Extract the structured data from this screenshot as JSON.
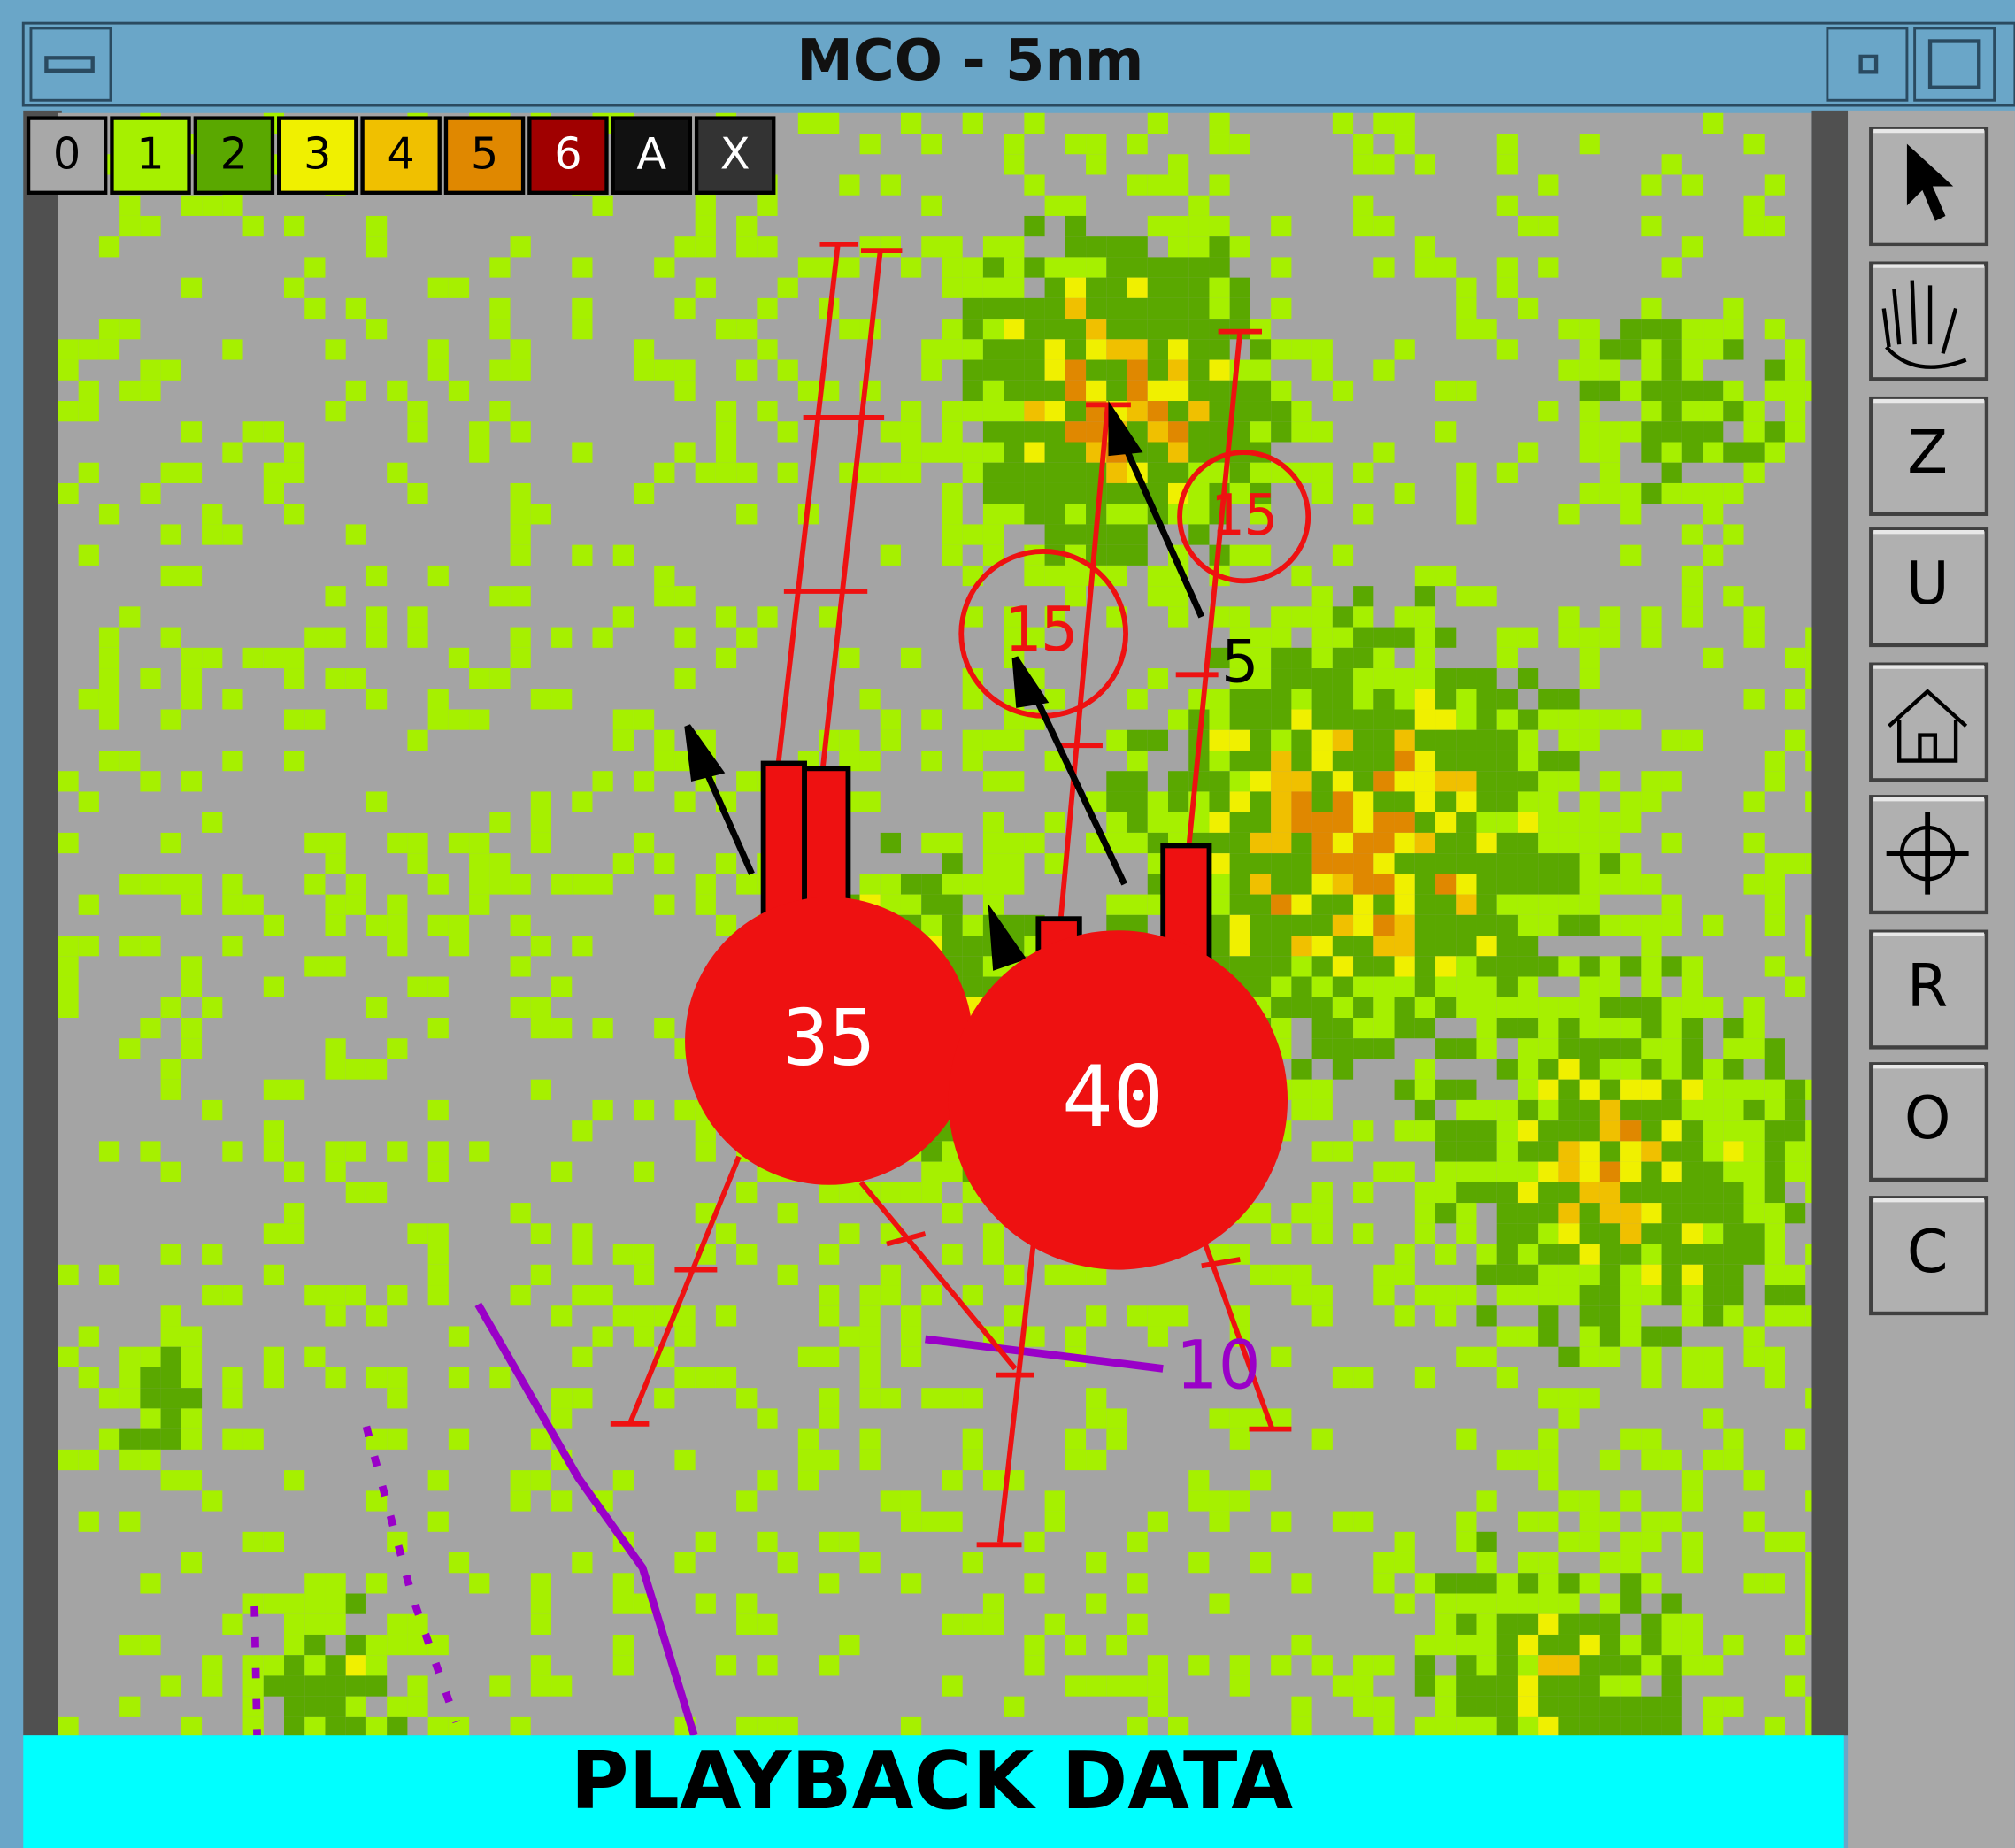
{
  "window": {
    "title": "MCO - 5nm"
  },
  "legend": {
    "levels": [
      "0",
      "1",
      "2",
      "3",
      "4",
      "5",
      "6",
      "A",
      "X"
    ]
  },
  "map": {
    "cells": [
      {
        "label": "35"
      },
      {
        "label": "40"
      },
      {
        "label": "15"
      },
      {
        "label": "15"
      }
    ],
    "marks": [
      "5",
      "10"
    ]
  },
  "toolbar": {
    "buttons": [
      "Z",
      "U",
      "R",
      "O",
      "C"
    ]
  },
  "status": "PLAYBACK DATA"
}
